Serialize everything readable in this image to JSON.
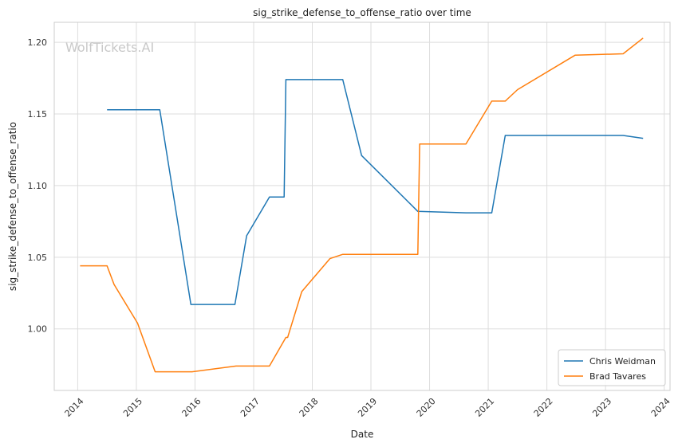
{
  "chart_data": {
    "type": "line",
    "title": "sig_strike_defense_to_offense_ratio over time",
    "xlabel": "Date",
    "ylabel": "sig_strike_defense_to_offense_ratio",
    "watermark": "WolfTickets.AI",
    "xlim": [
      2013.6,
      2024.1
    ],
    "ylim": [
      0.957,
      1.214
    ],
    "x_ticks": [
      "2014",
      "2015",
      "2016",
      "2017",
      "2018",
      "2019",
      "2020",
      "2021",
      "2022",
      "2023",
      "2024"
    ],
    "y_ticks": [
      "1.00",
      "1.05",
      "1.10",
      "1.15",
      "1.20"
    ],
    "grid": true,
    "legend_position": "lower-right",
    "series": [
      {
        "name": "Chris Weidman",
        "color": "#1f77b4",
        "x": [
          2014.5,
          2015.4,
          2015.93,
          2016.68,
          2016.88,
          2017.27,
          2017.52,
          2017.55,
          2018.52,
          2018.84,
          2019.8,
          2020.62,
          2021.06,
          2021.29,
          2023.3,
          2023.64
        ],
        "y": [
          1.153,
          1.153,
          1.017,
          1.017,
          1.065,
          1.092,
          1.092,
          1.174,
          1.174,
          1.121,
          1.082,
          1.081,
          1.081,
          1.135,
          1.135,
          1.133
        ]
      },
      {
        "name": "Brad Tavares",
        "color": "#ff7f0e",
        "x": [
          2014.04,
          2014.5,
          2014.62,
          2015.02,
          2015.32,
          2015.95,
          2016.7,
          2017.27,
          2017.55,
          2017.58,
          2017.82,
          2018.3,
          2018.52,
          2019.8,
          2019.83,
          2020.62,
          2021.06,
          2021.29,
          2021.5,
          2022.48,
          2023.3,
          2023.64
        ],
        "y": [
          1.044,
          1.044,
          1.031,
          1.004,
          0.97,
          0.97,
          0.974,
          0.974,
          0.994,
          0.994,
          1.026,
          1.049,
          1.052,
          1.052,
          1.129,
          1.129,
          1.159,
          1.159,
          1.167,
          1.191,
          1.192,
          1.203
        ]
      }
    ]
  }
}
